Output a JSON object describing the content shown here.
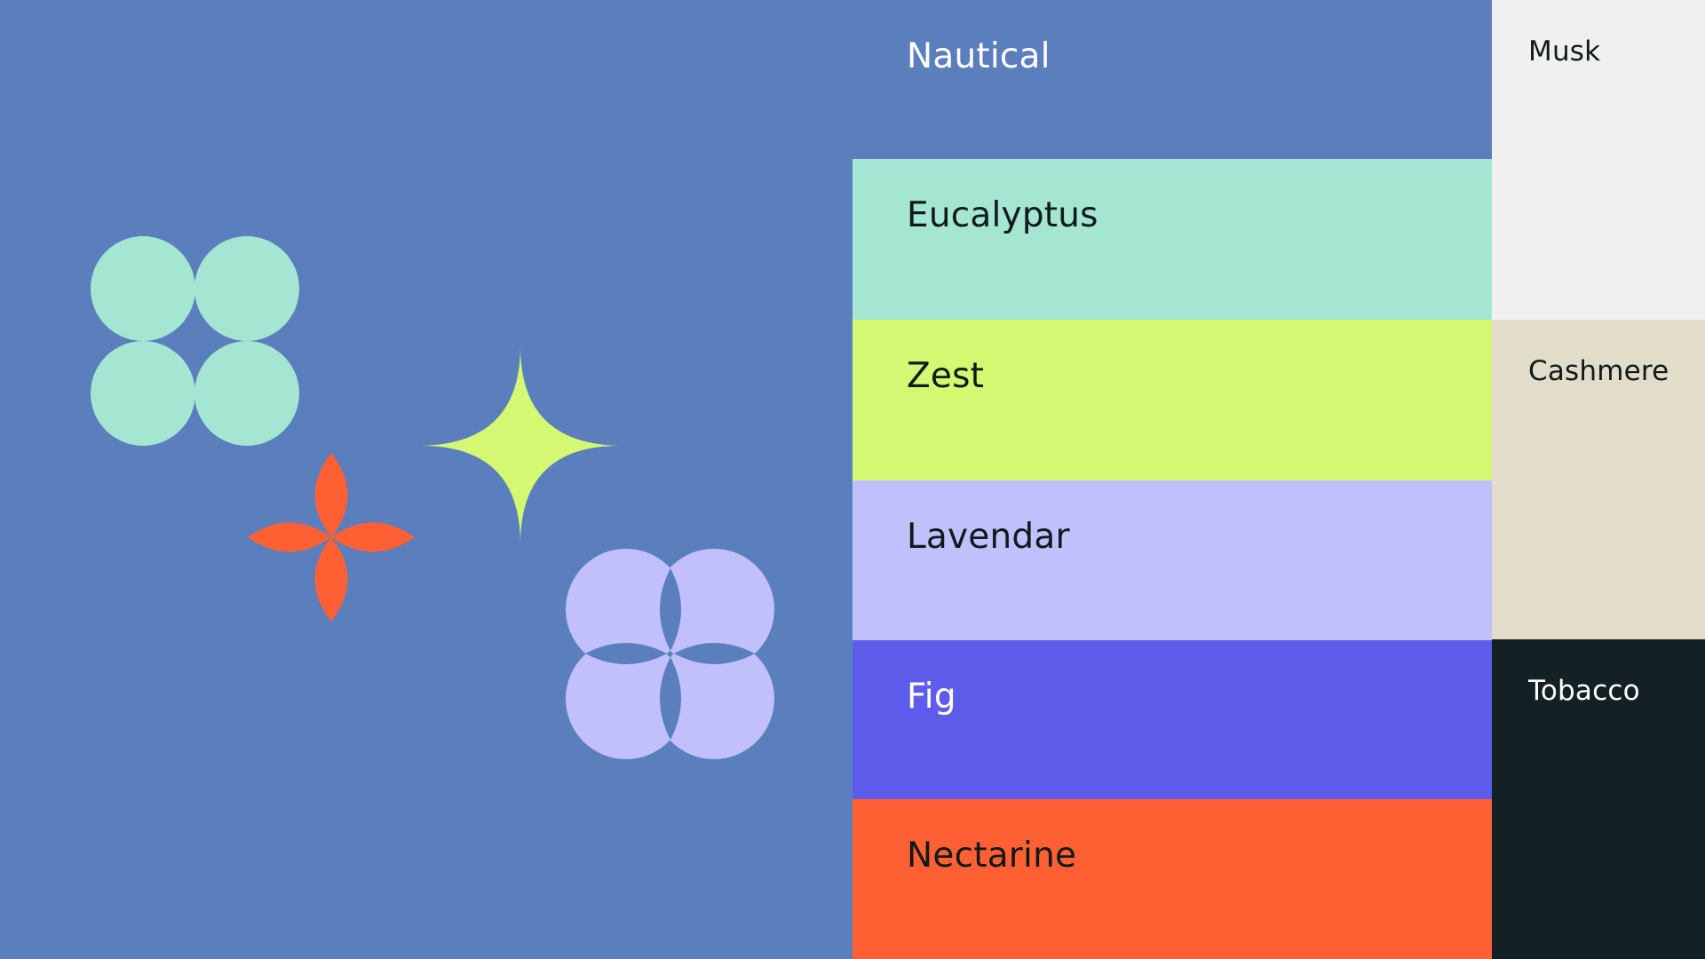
{
  "palette": {
    "background": "#5B7EBD",
    "primary": [
      {
        "name": "Nautical",
        "color": "#5B7EBD",
        "text_color": "#FFFFFF"
      },
      {
        "name": "Eucalyptus",
        "color": "#A4E6D2",
        "text_color": "#0F1A1A"
      },
      {
        "name": "Zest",
        "color": "#D4F871",
        "text_color": "#0F1A1A"
      },
      {
        "name": "Lavendar",
        "color": "#C1C0FD",
        "text_color": "#0F1A1A"
      },
      {
        "name": "Fig",
        "color": "#5D5CEB",
        "text_color": "#FFFFFF"
      },
      {
        "name": "Nectarine",
        "color": "#FF6033",
        "text_color": "#0F1A1A"
      }
    ],
    "neutral": [
      {
        "name": "Musk",
        "color": "#F0F0F0",
        "text_color": "#0F1A1A"
      },
      {
        "name": "Cashmere",
        "color": "#E2DCCA",
        "text_color": "#0F1A1A"
      },
      {
        "name": "Tobacco",
        "color": "#142124",
        "text_color": "#FFFFFF"
      }
    ]
  },
  "shapes": {
    "circle-cluster-icon": "#A4E6D2",
    "petal-flower-icon": "#FF6033",
    "sparkle-star-icon": "#D4F871",
    "overlap-circles-icon": "#C1C0FD"
  }
}
